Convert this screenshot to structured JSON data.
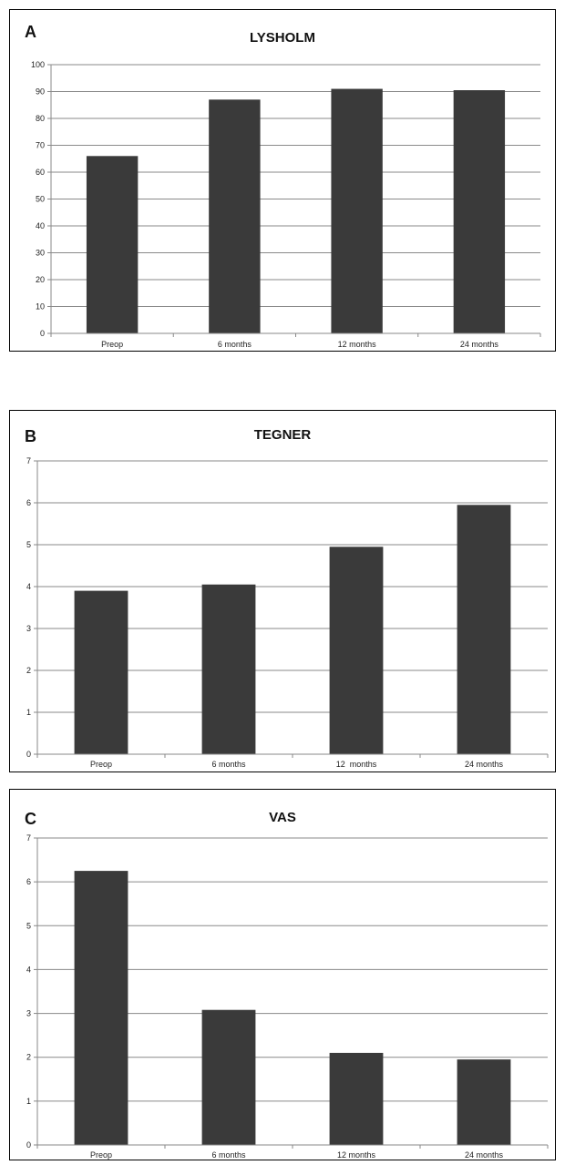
{
  "chart_data": [
    {
      "type": "bar",
      "panel_label": "A",
      "title": "LYSHOLM",
      "xlabel": "",
      "ylabel": "",
      "categories": [
        "Preop",
        "6 months",
        "12 months",
        "24 months"
      ],
      "values": [
        66,
        87,
        91,
        90.5
      ],
      "ylim": [
        0,
        100
      ],
      "yticks": [
        "0",
        "10",
        "20",
        "30",
        "40",
        "50",
        "60",
        "70",
        "80",
        "90",
        "100"
      ],
      "grid": true,
      "legend": "none",
      "bar_color": "#3a3a3a"
    },
    {
      "type": "bar",
      "panel_label": "B",
      "title": "TEGNER",
      "xlabel": "",
      "ylabel": "",
      "categories": [
        "Preop",
        "6 months",
        "12  months",
        "24 months"
      ],
      "values": [
        3.9,
        4.05,
        4.95,
        5.95
      ],
      "ylim": [
        0,
        7
      ],
      "yticks": [
        "0",
        "1",
        "2",
        "3",
        "4",
        "5",
        "6",
        "7"
      ],
      "grid": true,
      "legend": "none",
      "bar_color": "#3a3a3a"
    },
    {
      "type": "bar",
      "panel_label": "C",
      "title": "VAS",
      "xlabel": "",
      "ylabel": "",
      "categories": [
        "Preop",
        "6 months",
        "12 months",
        "24 months"
      ],
      "values": [
        6.25,
        3.08,
        2.1,
        1.95
      ],
      "ylim": [
        0,
        7
      ],
      "yticks": [
        "0",
        "1",
        "2",
        "3",
        "4",
        "5",
        "6",
        "7"
      ],
      "grid": true,
      "legend": "none",
      "bar_color": "#3a3a3a"
    }
  ]
}
